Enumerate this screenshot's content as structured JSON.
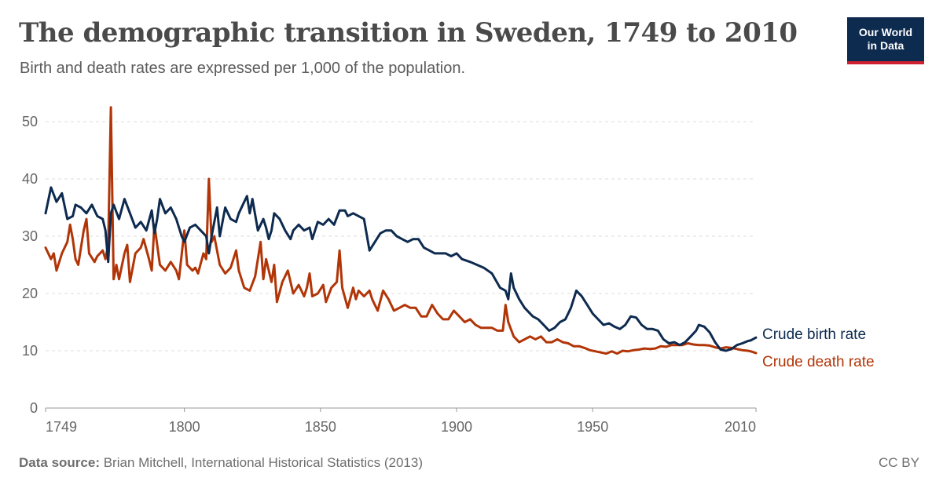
{
  "header": {
    "title": "The demographic transition in Sweden, 1749 to 2010",
    "subtitle": "Birth and death rates are expressed per 1,000 of the population."
  },
  "logo": {
    "line1": "Our World",
    "line2": "in Data",
    "bg_color": "#0d2a4f",
    "accent_color": "#cf2030"
  },
  "footer": {
    "source_label": "Data source:",
    "source_text": "Brian Mitchell, International Historical Statistics (2013)",
    "license": "CC BY"
  },
  "chart_data": {
    "type": "line",
    "title": "The demographic transition in Sweden, 1749 to 2010",
    "subtitle": "Birth and death rates are expressed per 1,000 of the population.",
    "xlabel": "",
    "ylabel": "",
    "xlim": [
      1749,
      2010
    ],
    "ylim": [
      0,
      50
    ],
    "x_ticks": [
      1749,
      1800,
      1850,
      1900,
      1950,
      2010
    ],
    "y_ticks": [
      0,
      10,
      20,
      30,
      40,
      50
    ],
    "grid": "horizontal dashed",
    "legend": "inline labels at right end of lines",
    "series": [
      {
        "name": "Crude birth rate",
        "color": "#0d2a4f",
        "points": [
          [
            1749,
            34
          ],
          [
            1751,
            38.5
          ],
          [
            1753,
            36
          ],
          [
            1755,
            37.5
          ],
          [
            1757,
            33
          ],
          [
            1759,
            33.5
          ],
          [
            1760,
            35.5
          ],
          [
            1762,
            35
          ],
          [
            1764,
            34
          ],
          [
            1766,
            35.5
          ],
          [
            1768,
            33.5
          ],
          [
            1770,
            33
          ],
          [
            1771,
            31
          ],
          [
            1772,
            25.5
          ],
          [
            1773,
            34
          ],
          [
            1774,
            35.5
          ],
          [
            1776,
            33
          ],
          [
            1778,
            36.5
          ],
          [
            1780,
            34
          ],
          [
            1782,
            31.5
          ],
          [
            1784,
            32.5
          ],
          [
            1786,
            31
          ],
          [
            1788,
            34.5
          ],
          [
            1789,
            30.5
          ],
          [
            1790,
            33
          ],
          [
            1791,
            36.5
          ],
          [
            1793,
            34
          ],
          [
            1795,
            35
          ],
          [
            1797,
            33
          ],
          [
            1799,
            30
          ],
          [
            1800,
            29
          ],
          [
            1802,
            31.5
          ],
          [
            1804,
            32
          ],
          [
            1806,
            31
          ],
          [
            1808,
            30
          ],
          [
            1809,
            27
          ],
          [
            1810,
            30
          ],
          [
            1812,
            35
          ],
          [
            1813,
            30
          ],
          [
            1815,
            35
          ],
          [
            1817,
            33
          ],
          [
            1819,
            32.5
          ],
          [
            1820,
            34
          ],
          [
            1822,
            36
          ],
          [
            1823,
            37
          ],
          [
            1824,
            34
          ],
          [
            1825,
            36.5
          ],
          [
            1827,
            31
          ],
          [
            1829,
            33
          ],
          [
            1830,
            31.5
          ],
          [
            1831,
            29.5
          ],
          [
            1832,
            31
          ],
          [
            1833,
            34
          ],
          [
            1835,
            33
          ],
          [
            1837,
            31
          ],
          [
            1839,
            29.5
          ],
          [
            1840,
            31
          ],
          [
            1842,
            32
          ],
          [
            1844,
            31
          ],
          [
            1846,
            31.5
          ],
          [
            1847,
            29.5
          ],
          [
            1849,
            32.5
          ],
          [
            1851,
            32
          ],
          [
            1853,
            33
          ],
          [
            1855,
            32
          ],
          [
            1857,
            34.5
          ],
          [
            1859,
            34.5
          ],
          [
            1860,
            33.5
          ],
          [
            1862,
            34
          ],
          [
            1864,
            33.5
          ],
          [
            1866,
            33
          ],
          [
            1868,
            27.5
          ],
          [
            1870,
            29
          ],
          [
            1872,
            30.5
          ],
          [
            1874,
            31
          ],
          [
            1876,
            31
          ],
          [
            1878,
            30
          ],
          [
            1880,
            29.5
          ],
          [
            1882,
            29
          ],
          [
            1884,
            29.5
          ],
          [
            1886,
            29.5
          ],
          [
            1888,
            28
          ],
          [
            1890,
            27.5
          ],
          [
            1892,
            27
          ],
          [
            1894,
            27
          ],
          [
            1896,
            27
          ],
          [
            1898,
            26.5
          ],
          [
            1900,
            27
          ],
          [
            1902,
            26
          ],
          [
            1905,
            25.5
          ],
          [
            1910,
            24.5
          ],
          [
            1913,
            23.5
          ],
          [
            1916,
            21
          ],
          [
            1918,
            20.5
          ],
          [
            1919,
            19
          ],
          [
            1920,
            23.5
          ],
          [
            1921,
            21
          ],
          [
            1923,
            19
          ],
          [
            1925,
            17.5
          ],
          [
            1928,
            16
          ],
          [
            1930,
            15.5
          ],
          [
            1932,
            14.5
          ],
          [
            1934,
            13.5
          ],
          [
            1936,
            14
          ],
          [
            1938,
            15
          ],
          [
            1940,
            15.5
          ],
          [
            1942,
            17.5
          ],
          [
            1944,
            20.5
          ],
          [
            1946,
            19.5
          ],
          [
            1948,
            18
          ],
          [
            1950,
            16.5
          ],
          [
            1952,
            15.5
          ],
          [
            1954,
            14.5
          ],
          [
            1956,
            14.8
          ],
          [
            1958,
            14.2
          ],
          [
            1960,
            13.8
          ],
          [
            1962,
            14.5
          ],
          [
            1964,
            16
          ],
          [
            1966,
            15.8
          ],
          [
            1968,
            14.5
          ],
          [
            1970,
            13.8
          ],
          [
            1972,
            13.8
          ],
          [
            1974,
            13.5
          ],
          [
            1976,
            12
          ],
          [
            1978,
            11.3
          ],
          [
            1980,
            11.5
          ],
          [
            1982,
            11
          ],
          [
            1984,
            11.5
          ],
          [
            1986,
            12.5
          ],
          [
            1988,
            13.5
          ],
          [
            1989,
            14.5
          ],
          [
            1991,
            14.2
          ],
          [
            1993,
            13.2
          ],
          [
            1995,
            11.5
          ],
          [
            1997,
            10.2
          ],
          [
            1999,
            10
          ],
          [
            2001,
            10.3
          ],
          [
            2003,
            11
          ],
          [
            2005,
            11.3
          ],
          [
            2007,
            11.7
          ],
          [
            2008,
            11.8
          ],
          [
            2010,
            12.3
          ]
        ]
      },
      {
        "name": "Crude death rate",
        "color": "#b13507",
        "points": [
          [
            1749,
            28
          ],
          [
            1751,
            26
          ],
          [
            1752,
            27
          ],
          [
            1753,
            24
          ],
          [
            1755,
            27
          ],
          [
            1757,
            29
          ],
          [
            1758,
            32
          ],
          [
            1759,
            29.5
          ],
          [
            1760,
            26
          ],
          [
            1761,
            25
          ],
          [
            1763,
            31
          ],
          [
            1764,
            33
          ],
          [
            1765,
            27
          ],
          [
            1767,
            25.5
          ],
          [
            1768,
            26.5
          ],
          [
            1770,
            27.5
          ],
          [
            1771,
            26
          ],
          [
            1772,
            28.5
          ],
          [
            1773,
            52.5
          ],
          [
            1774,
            22.5
          ],
          [
            1775,
            25
          ],
          [
            1776,
            22.5
          ],
          [
            1778,
            27
          ],
          [
            1779,
            28.5
          ],
          [
            1780,
            22
          ],
          [
            1782,
            27
          ],
          [
            1784,
            28
          ],
          [
            1785,
            29.5
          ],
          [
            1787,
            26
          ],
          [
            1788,
            24
          ],
          [
            1789,
            32
          ],
          [
            1790,
            28.5
          ],
          [
            1791,
            25
          ],
          [
            1793,
            24
          ],
          [
            1795,
            25.5
          ],
          [
            1797,
            24
          ],
          [
            1798,
            22.5
          ],
          [
            1800,
            31
          ],
          [
            1801,
            25
          ],
          [
            1803,
            24
          ],
          [
            1804,
            24.5
          ],
          [
            1805,
            23.5
          ],
          [
            1807,
            27
          ],
          [
            1808,
            26
          ],
          [
            1809,
            40
          ],
          [
            1810,
            29
          ],
          [
            1811,
            30
          ],
          [
            1813,
            25
          ],
          [
            1815,
            23.5
          ],
          [
            1817,
            24.5
          ],
          [
            1819,
            27.5
          ],
          [
            1820,
            24
          ],
          [
            1822,
            21
          ],
          [
            1824,
            20.5
          ],
          [
            1826,
            23
          ],
          [
            1828,
            29
          ],
          [
            1829,
            22.5
          ],
          [
            1830,
            26
          ],
          [
            1832,
            22
          ],
          [
            1833,
            25
          ],
          [
            1834,
            18.5
          ],
          [
            1836,
            22
          ],
          [
            1838,
            24
          ],
          [
            1840,
            20
          ],
          [
            1842,
            21.5
          ],
          [
            1844,
            19.5
          ],
          [
            1845,
            21
          ],
          [
            1846,
            23.5
          ],
          [
            1847,
            19.5
          ],
          [
            1849,
            20
          ],
          [
            1851,
            21.5
          ],
          [
            1852,
            18.5
          ],
          [
            1854,
            21
          ],
          [
            1856,
            22
          ],
          [
            1857,
            27.5
          ],
          [
            1858,
            21
          ],
          [
            1860,
            17.5
          ],
          [
            1862,
            21
          ],
          [
            1863,
            19
          ],
          [
            1864,
            20.5
          ],
          [
            1866,
            19.5
          ],
          [
            1868,
            20.5
          ],
          [
            1869,
            19
          ],
          [
            1871,
            17
          ],
          [
            1873,
            20.5
          ],
          [
            1875,
            19
          ],
          [
            1877,
            17
          ],
          [
            1879,
            17.5
          ],
          [
            1881,
            18
          ],
          [
            1883,
            17.5
          ],
          [
            1885,
            17.5
          ],
          [
            1887,
            16
          ],
          [
            1889,
            16
          ],
          [
            1891,
            18
          ],
          [
            1893,
            16.5
          ],
          [
            1895,
            15.5
          ],
          [
            1897,
            15.5
          ],
          [
            1899,
            17
          ],
          [
            1901,
            16
          ],
          [
            1903,
            15
          ],
          [
            1905,
            15.5
          ],
          [
            1907,
            14.5
          ],
          [
            1909,
            14
          ],
          [
            1911,
            14
          ],
          [
            1913,
            14
          ],
          [
            1915,
            13.5
          ],
          [
            1917,
            13.5
          ],
          [
            1918,
            18
          ],
          [
            1919,
            15
          ],
          [
            1921,
            12.5
          ],
          [
            1923,
            11.5
          ],
          [
            1925,
            12
          ],
          [
            1927,
            12.5
          ],
          [
            1929,
            12
          ],
          [
            1931,
            12.5
          ],
          [
            1933,
            11.5
          ],
          [
            1935,
            11.5
          ],
          [
            1937,
            12
          ],
          [
            1939,
            11.5
          ],
          [
            1941,
            11.3
          ],
          [
            1943,
            10.8
          ],
          [
            1945,
            10.8
          ],
          [
            1947,
            10.5
          ],
          [
            1949,
            10.1
          ],
          [
            1951,
            9.9
          ],
          [
            1953,
            9.7
          ],
          [
            1955,
            9.5
          ],
          [
            1957,
            9.9
          ],
          [
            1959,
            9.5
          ],
          [
            1961,
            10
          ],
          [
            1963,
            9.9
          ],
          [
            1965,
            10.1
          ],
          [
            1967,
            10.2
          ],
          [
            1969,
            10.4
          ],
          [
            1971,
            10.3
          ],
          [
            1973,
            10.4
          ],
          [
            1975,
            10.8
          ],
          [
            1977,
            10.7
          ],
          [
            1979,
            11
          ],
          [
            1981,
            11
          ],
          [
            1983,
            11
          ],
          [
            1985,
            11.3
          ],
          [
            1987,
            11.1
          ],
          [
            1989,
            11
          ],
          [
            1991,
            11
          ],
          [
            1993,
            10.9
          ],
          [
            1995,
            10.6
          ],
          [
            1997,
            10.4
          ],
          [
            1999,
            10.6
          ],
          [
            2001,
            10.5
          ],
          [
            2003,
            10.3
          ],
          [
            2005,
            10.1
          ],
          [
            2007,
            10
          ],
          [
            2008,
            9.9
          ],
          [
            2010,
            9.6
          ]
        ]
      }
    ]
  }
}
